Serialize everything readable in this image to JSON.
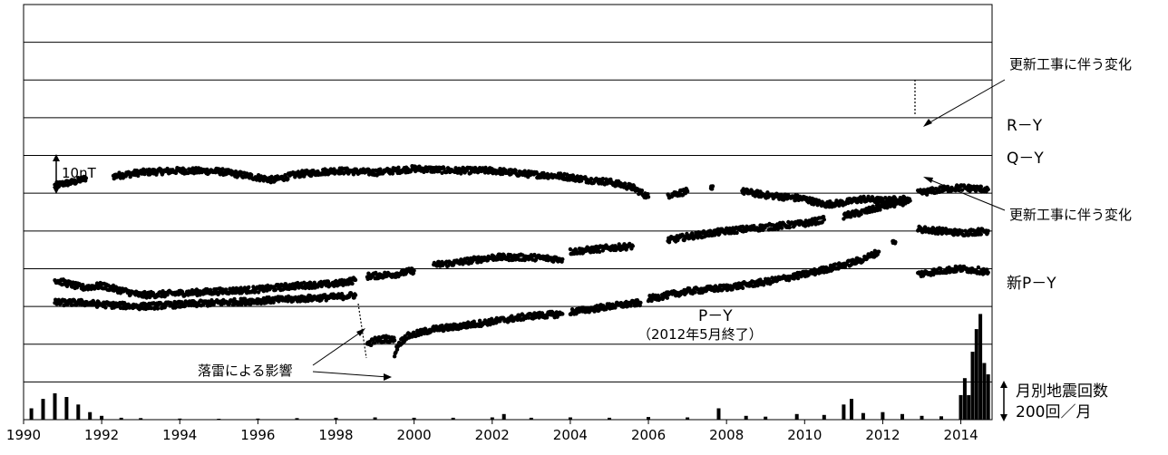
{
  "chart_data": {
    "type": "scatter",
    "title": "",
    "xlabel": "",
    "ylabel": "",
    "x_tick_labels": [
      "1990",
      "1992",
      "1994",
      "1996",
      "1998",
      "2000",
      "2002",
      "2004",
      "2006",
      "2008",
      "2010",
      "2012",
      "2014"
    ],
    "xlim": [
      1990,
      2014.8
    ],
    "grid": true,
    "colors": {
      "points": "#000000",
      "grid": "#000000",
      "background": "#ffffff"
    },
    "scale_bar_label": "10nT",
    "series": [
      {
        "name": "R－Y",
        "segments": [
          [
            [
              1990.8,
              62.0
            ],
            [
              1991.0,
              62.5
            ],
            [
              1991.3,
              63.0
            ],
            [
              1991.6,
              64.0
            ]
          ],
          [
            [
              1992.3,
              64.5
            ],
            [
              1993.0,
              65.5
            ],
            [
              1994.0,
              66.0
            ],
            [
              1995.0,
              65.8
            ],
            [
              1995.8,
              64.5
            ],
            [
              1996.4,
              63.5
            ],
            [
              1997.0,
              65.0
            ],
            [
              1998.0,
              66.0
            ],
            [
              1999.0,
              65.5
            ],
            [
              2000.0,
              66.5
            ],
            [
              2001.0,
              66.0
            ],
            [
              2002.0,
              66.0
            ],
            [
              2003.0,
              65.0
            ],
            [
              2003.8,
              64.5
            ],
            [
              2004.5,
              63.5
            ],
            [
              2005.0,
              63.0
            ],
            [
              2005.6,
              61.5
            ],
            [
              2006.0,
              59.0
            ]
          ],
          [
            [
              2006.5,
              59.5
            ],
            [
              2007.0,
              60.5
            ]
          ],
          [
            [
              2007.6,
              61.5
            ]
          ],
          [
            [
              2008.4,
              60.5
            ],
            [
              2009.0,
              59.5
            ],
            [
              2009.5,
              59.0
            ],
            [
              2010.0,
              58.5
            ],
            [
              2010.5,
              57.0
            ],
            [
              2011.0,
              57.5
            ],
            [
              2011.5,
              58.5
            ],
            [
              2012.0,
              58.0
            ],
            [
              2012.6,
              58.5
            ]
          ],
          [
            [
              2012.9,
              50.5
            ],
            [
              2013.5,
              50.0
            ],
            [
              2014.0,
              49.5
            ],
            [
              2014.7,
              50.0
            ]
          ]
        ]
      },
      {
        "name": "Q－Y",
        "segments": [
          [
            [
              1990.8,
              37.0
            ],
            [
              1991.5,
              35.0
            ],
            [
              1992.0,
              35.5
            ],
            [
              1993.0,
              33.0
            ],
            [
              1994.0,
              33.5
            ],
            [
              1995.0,
              34.0
            ],
            [
              1996.0,
              34.5
            ],
            [
              1997.0,
              35.5
            ],
            [
              1998.0,
              36.0
            ],
            [
              1998.5,
              37.0
            ]
          ],
          [
            [
              1998.8,
              38.0
            ],
            [
              1999.5,
              38.5
            ],
            [
              2000.0,
              39.5
            ]
          ],
          [
            [
              2000.5,
              41.0
            ],
            [
              2001.0,
              41.5
            ],
            [
              2002.0,
              43.0
            ],
            [
              2003.0,
              43.0
            ],
            [
              2003.8,
              42.5
            ]
          ],
          [
            [
              2004.0,
              44.5
            ],
            [
              2005.0,
              45.5
            ],
            [
              2005.6,
              46.0
            ]
          ],
          [
            [
              2006.5,
              47.5
            ],
            [
              2007.0,
              48.5
            ],
            [
              2008.0,
              50.0
            ],
            [
              2009.0,
              51.0
            ],
            [
              2010.0,
              52.0
            ],
            [
              2010.5,
              53.0
            ]
          ],
          [
            [
              2011.0,
              54.0
            ],
            [
              2011.5,
              55.0
            ],
            [
              2012.0,
              56.5
            ],
            [
              2012.7,
              58.0
            ]
          ],
          [
            [
              2012.9,
              60.0
            ],
            [
              2013.5,
              61.0
            ],
            [
              2014.0,
              61.5
            ],
            [
              2014.7,
              61.0
            ]
          ]
        ]
      },
      {
        "name": "P－Y",
        "note": "（2012年5月終了）",
        "segments": [
          [
            [
              1990.8,
              31.0
            ],
            [
              1991.5,
              31.0
            ],
            [
              1992.0,
              30.5
            ],
            [
              1993.0,
              30.0
            ],
            [
              1994.0,
              30.5
            ],
            [
              1995.0,
              31.0
            ],
            [
              1996.0,
              31.5
            ],
            [
              1997.0,
              32.0
            ],
            [
              1998.0,
              32.5
            ],
            [
              1998.5,
              33.0
            ]
          ],
          [
            [
              1998.8,
              20.0
            ],
            [
              1999.0,
              21.0
            ],
            [
              1999.3,
              21.5
            ],
            [
              1999.5,
              21.0
            ]
          ],
          [
            [
              1999.5,
              17.5
            ],
            [
              1999.6,
              20.0
            ],
            [
              1999.8,
              22.0
            ],
            [
              2000.5,
              24.0
            ],
            [
              2001.0,
              24.5
            ],
            [
              2002.0,
              26.0
            ],
            [
              2003.0,
              27.5
            ],
            [
              2003.8,
              28.0
            ]
          ],
          [
            [
              2004.0,
              28.5
            ],
            [
              2005.0,
              30.0
            ],
            [
              2005.8,
              31.0
            ]
          ],
          [
            [
              2006.0,
              32.0
            ],
            [
              2007.0,
              34.0
            ],
            [
              2008.0,
              35.0
            ],
            [
              2009.0,
              36.5
            ],
            [
              2010.0,
              38.5
            ],
            [
              2011.0,
              41.0
            ],
            [
              2011.5,
              42.5
            ],
            [
              2011.9,
              44.5
            ]
          ],
          [
            [
              2012.3,
              47.0
            ]
          ]
        ]
      },
      {
        "name": "新P－Y",
        "segments": [
          [
            [
              2012.9,
              38.5
            ],
            [
              2013.5,
              39.5
            ],
            [
              2014.0,
              40.0
            ],
            [
              2014.5,
              39.5
            ],
            [
              2014.7,
              39.0
            ]
          ]
        ]
      }
    ],
    "monthly_earthquakes": {
      "name": "月別地震回数",
      "scale_label": "200回／月",
      "x": [
        1990.2,
        1990.5,
        1990.8,
        1991.1,
        1991.4,
        1991.7,
        1992.0,
        1992.5,
        1993.0,
        1994.0,
        1995.0,
        1996.0,
        1997.0,
        1998.0,
        1999.0,
        2000.0,
        2001.0,
        2002.0,
        2002.3,
        2003.0,
        2004.0,
        2005.0,
        2006.0,
        2007.0,
        2007.8,
        2008.5,
        2009.0,
        2009.8,
        2010.5,
        2011.0,
        2011.2,
        2011.5,
        2012.0,
        2012.5,
        2013.0,
        2013.5,
        2014.0,
        2014.1,
        2014.2,
        2014.3,
        2014.4,
        2014.5,
        2014.6,
        2014.7
      ],
      "values": [
        60,
        110,
        140,
        120,
        80,
        40,
        20,
        10,
        8,
        6,
        5,
        6,
        8,
        10,
        12,
        10,
        10,
        12,
        30,
        10,
        12,
        10,
        14,
        12,
        60,
        20,
        16,
        30,
        25,
        80,
        110,
        35,
        40,
        30,
        20,
        18,
        130,
        220,
        130,
        360,
        480,
        560,
        300,
        240
      ]
    },
    "annotations": [
      "更新工事に伴う変化",
      "更新工事に伴う変化",
      "落雷による影響",
      "P－Y",
      "（2012年5月終了）"
    ],
    "series_labels": [
      "R－Y",
      "Q－Y",
      "新P－Y"
    ],
    "eq_labels": [
      "月別地震回数",
      "200回／月"
    ]
  }
}
